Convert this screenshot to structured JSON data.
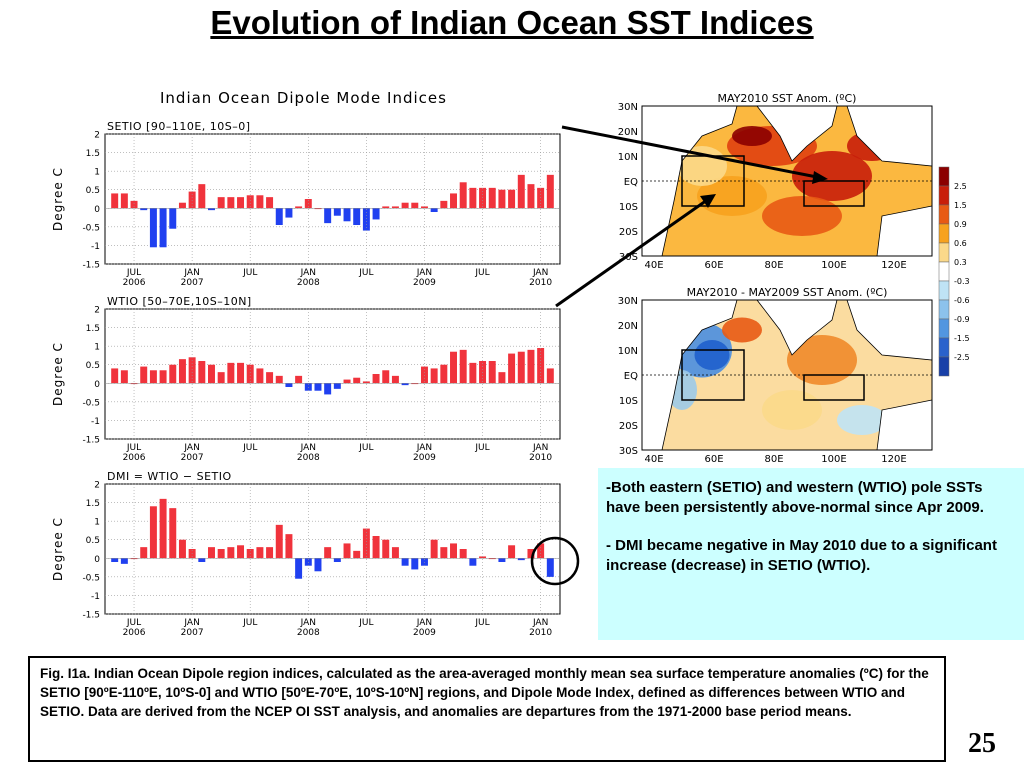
{
  "slide": {
    "title": "Evolution of Indian Ocean SST Indices",
    "figure_title": "Indian Ocean Dipole Mode Indices",
    "page_number": "25"
  },
  "bullets": [
    "-Both eastern (SETIO) and western (WTIO) pole SSTs have been persistently above-normal since Apr 2009.",
    "- DMI became negative in May 2010 due to a significant increase (decrease) in SETIO (WTIO)."
  ],
  "caption": "Fig. I1a. Indian Ocean Dipole region indices, calculated as the area-averaged monthly mean sea surface temperature anomalies (ºC) for the SETIO [90ºE-110ºE, 10ºS-0] and WTIO [50ºE-70ºE, 10ºS-10ºN] regions, and Dipole Mode Index, defined as differences between WTIO and SETIO. Data are derived from the NCEP OI SST analysis, and anomalies are departures from the 1971-2000 base period means.",
  "maps": [
    {
      "title": "MAY2010 SST Anom. (ºC)",
      "lat_labels": [
        "30N",
        "20N",
        "10N",
        "EQ",
        "10S",
        "20S",
        "30S"
      ],
      "lon_labels": [
        "40E",
        "60E",
        "80E",
        "100E",
        "120E"
      ]
    },
    {
      "title": "MAY2010 - MAY2009 SST Anom. (ºC)",
      "lat_labels": [
        "30N",
        "20N",
        "10N",
        "EQ",
        "10S",
        "20S",
        "30S"
      ],
      "lon_labels": [
        "40E",
        "60E",
        "80E",
        "100E",
        "120E"
      ]
    }
  ],
  "colorbar": {
    "labels": [
      "2.5",
      "1.5",
      "0.9",
      "0.6",
      "0.3",
      "-0.3",
      "-0.6",
      "-0.9",
      "-1.5",
      "-2.5"
    ],
    "colors": [
      "#8b0000",
      "#c81e0a",
      "#e85a14",
      "#f7a21e",
      "#fbd98a",
      "#ffffff",
      "#bfe3f5",
      "#8cc2ec",
      "#5296e0",
      "#2a62cc",
      "#1840a8"
    ]
  },
  "chart_data": [
    {
      "type": "bar",
      "title": "SETIO [90–110E, 10S–0]",
      "ylabel": "Degree C",
      "ylim": [
        -1.5,
        2
      ],
      "yticks": [
        "2",
        "1.5",
        "1",
        "0.5",
        "0",
        "-0.5",
        "-1",
        "-1.5"
      ],
      "x_tick_labels": [
        [
          "JUL",
          "2006"
        ],
        [
          "JAN",
          "2007"
        ],
        [
          "JUL",
          ""
        ],
        [
          "JAN",
          "2008"
        ],
        [
          "JUL",
          ""
        ],
        [
          "JAN",
          "2009"
        ],
        [
          "JUL",
          ""
        ],
        [
          "JAN",
          "2010"
        ]
      ],
      "start": "2006-05",
      "values": [
        0.4,
        0.4,
        0.2,
        -0.05,
        -1.05,
        -1.05,
        -0.55,
        0.15,
        0.45,
        0.65,
        -0.05,
        0.3,
        0.3,
        0.3,
        0.35,
        0.35,
        0.3,
        -0.45,
        -0.25,
        0.05,
        0.25,
        0.0,
        -0.4,
        -0.2,
        -0.35,
        -0.45,
        -0.6,
        -0.3,
        0.05,
        0.05,
        0.15,
        0.15,
        0.05,
        -0.1,
        0.2,
        0.4,
        0.7,
        0.55,
        0.55,
        0.55,
        0.5,
        0.5,
        0.9,
        0.65,
        0.55,
        0.9
      ]
    },
    {
      "type": "bar",
      "title": "WTIO [50–70E,10S–10N]",
      "ylabel": "Degree C",
      "ylim": [
        -1.5,
        2
      ],
      "yticks": [
        "2",
        "1.5",
        "1",
        "0.5",
        "0",
        "-0.5",
        "-1",
        "-1.5"
      ],
      "x_tick_labels": [
        [
          "JUL",
          "2006"
        ],
        [
          "JAN",
          "2007"
        ],
        [
          "JUL",
          ""
        ],
        [
          "JAN",
          "2008"
        ],
        [
          "JUL",
          ""
        ],
        [
          "JAN",
          "2009"
        ],
        [
          "JUL",
          ""
        ],
        [
          "JAN",
          "2010"
        ]
      ],
      "start": "2006-05",
      "values": [
        0.4,
        0.35,
        0.0,
        0.45,
        0.35,
        0.35,
        0.5,
        0.65,
        0.7,
        0.6,
        0.5,
        0.3,
        0.55,
        0.55,
        0.5,
        0.4,
        0.3,
        0.2,
        -0.1,
        0.2,
        -0.2,
        -0.2,
        -0.3,
        -0.15,
        0.1,
        0.15,
        0.05,
        0.25,
        0.35,
        0.2,
        -0.05,
        0.0,
        0.45,
        0.4,
        0.5,
        0.85,
        0.9,
        0.55,
        0.6,
        0.6,
        0.3,
        0.8,
        0.85,
        0.9,
        0.95,
        0.4
      ]
    },
    {
      "type": "bar",
      "title": "DMI = WTIO − SETIO",
      "ylabel": "Degree C",
      "ylim": [
        -1.5,
        2
      ],
      "yticks": [
        "2",
        "1.5",
        "1",
        "0.5",
        "0",
        "-0.5",
        "-1",
        "-1.5"
      ],
      "x_tick_labels": [
        [
          "JUL",
          "2006"
        ],
        [
          "JAN",
          "2007"
        ],
        [
          "JUL",
          ""
        ],
        [
          "JAN",
          "2008"
        ],
        [
          "JUL",
          ""
        ],
        [
          "JAN",
          "2009"
        ],
        [
          "JUL",
          ""
        ],
        [
          "JAN",
          "2010"
        ]
      ],
      "start": "2006-05",
      "values": [
        -0.1,
        -0.15,
        0.0,
        0.3,
        1.4,
        1.6,
        1.35,
        0.5,
        0.25,
        -0.1,
        0.3,
        0.25,
        0.3,
        0.35,
        0.25,
        0.3,
        0.3,
        0.9,
        0.65,
        -0.55,
        -0.2,
        -0.35,
        0.3,
        -0.1,
        0.4,
        0.2,
        0.8,
        0.6,
        0.5,
        0.3,
        -0.2,
        -0.3,
        -0.2,
        0.5,
        0.3,
        0.4,
        0.25,
        -0.2,
        0.05,
        0.0,
        -0.1,
        0.35,
        -0.05,
        0.25,
        0.4,
        -0.5
      ]
    }
  ]
}
